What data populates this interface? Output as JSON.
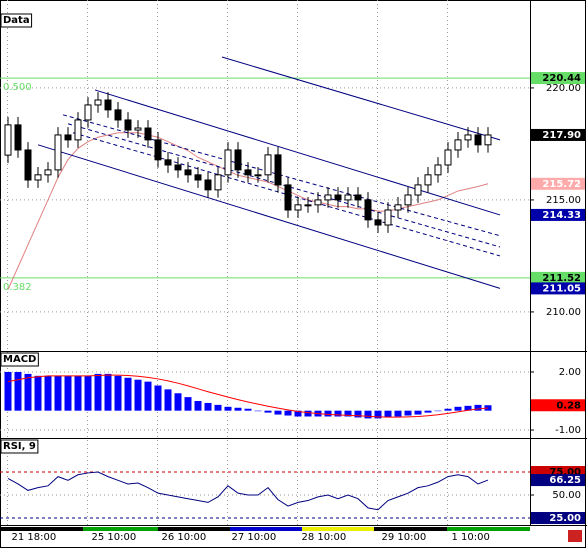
{
  "chart_data": [
    {
      "type": "candlestick",
      "title": "Data",
      "categories": [
        "21 18:00",
        null,
        null,
        null,
        null,
        null,
        null,
        null,
        "25 10:00",
        null,
        null,
        null,
        null,
        null,
        null,
        "26 10:00",
        null,
        null,
        null,
        null,
        null,
        null,
        "27 10:00",
        null,
        null,
        null,
        null,
        null,
        null,
        "28 10:00",
        null,
        null,
        null,
        null,
        null,
        null,
        null,
        "29 10:00",
        null,
        null,
        null,
        null,
        null,
        null,
        "1 10:00",
        null,
        null,
        null,
        null
      ],
      "open": [
        217.0,
        218.35,
        217.23,
        215.89,
        216.12,
        216.34,
        217.9,
        217.68,
        218.57,
        219.24,
        219.46,
        219.02,
        218.57,
        218.12,
        218.21,
        217.68,
        216.79,
        216.56,
        216.34,
        216.12,
        215.89,
        215.45,
        216.12,
        217.23,
        216.34,
        216.12,
        216.12,
        217.01,
        215.67,
        214.55,
        214.78,
        214.78,
        215.0,
        215.22,
        215.0,
        215.22,
        215.0,
        214.11,
        213.88,
        214.55,
        214.78,
        215.22,
        215.67,
        216.12,
        216.56,
        217.23,
        217.68,
        217.9,
        217.46
      ],
      "high": [
        218.7,
        218.7,
        217.58,
        216.47,
        216.69,
        218.25,
        218.25,
        218.92,
        219.59,
        219.81,
        219.81,
        219.37,
        218.92,
        218.56,
        218.56,
        218.03,
        217.14,
        216.91,
        216.69,
        216.47,
        216.24,
        216.47,
        217.58,
        217.58,
        216.69,
        216.47,
        217.36,
        217.36,
        216.02,
        215.13,
        215.13,
        215.35,
        215.57,
        215.57,
        215.57,
        215.57,
        215.35,
        214.46,
        214.9,
        215.13,
        215.57,
        216.02,
        216.47,
        216.91,
        217.58,
        218.03,
        218.25,
        218.25,
        218.25
      ],
      "low": [
        216.65,
        216.88,
        215.54,
        215.54,
        215.77,
        215.99,
        217.33,
        217.33,
        218.22,
        218.89,
        218.67,
        218.22,
        217.77,
        217.77,
        217.33,
        216.44,
        216.21,
        215.99,
        215.77,
        215.54,
        215.1,
        215.1,
        215.77,
        215.99,
        215.77,
        215.77,
        215.77,
        215.32,
        214.2,
        214.2,
        214.43,
        214.43,
        214.65,
        214.65,
        214.65,
        214.65,
        213.76,
        213.53,
        213.53,
        214.2,
        214.43,
        214.87,
        215.32,
        215.77,
        216.21,
        216.88,
        217.33,
        217.11,
        217.11
      ],
      "close": [
        218.35,
        217.23,
        215.89,
        216.12,
        216.34,
        217.9,
        217.68,
        218.57,
        219.24,
        219.46,
        219.02,
        218.57,
        218.12,
        218.21,
        217.68,
        216.79,
        216.56,
        216.34,
        216.12,
        215.89,
        215.45,
        216.12,
        217.23,
        216.34,
        216.12,
        216.12,
        217.01,
        215.67,
        214.55,
        214.78,
        214.78,
        215.0,
        215.22,
        215.0,
        215.22,
        215.0,
        214.11,
        213.88,
        214.55,
        214.78,
        215.22,
        215.67,
        216.12,
        216.56,
        217.23,
        217.68,
        217.9,
        217.46,
        217.9
      ],
      "up_color": "#ffffff",
      "down_color": "#000000",
      "moving_average": {
        "color": "#e08080",
        "values": [
          211.0,
          212.0,
          213.0,
          214.0,
          215.0,
          216.0,
          216.8,
          217.3,
          217.6,
          217.8,
          217.9,
          218.0,
          218.0,
          218.0,
          217.9,
          217.8,
          217.6,
          217.4,
          217.2,
          216.9,
          216.7,
          216.5,
          216.3,
          216.1,
          216.0,
          215.9,
          215.8,
          215.6,
          215.4,
          215.2,
          215.0,
          214.9,
          214.8,
          214.7,
          214.7,
          214.6,
          214.6,
          214.5,
          214.5,
          214.6,
          214.7,
          214.8,
          214.9,
          215.0,
          215.2,
          215.4,
          215.5,
          215.6,
          215.72
        ]
      },
      "trendlines": [
        {
          "x": [
            21.4,
            49.2
          ],
          "y": [
            221.38,
            217.68
          ],
          "color": "#000080",
          "dashed": false
        },
        {
          "x": [
            8.7,
            49.2
          ],
          "y": [
            219.91,
            214.33
          ],
          "color": "#000080",
          "dashed": false
        },
        {
          "x": [
            3.0,
            49.2
          ],
          "y": [
            217.46,
            211.05
          ],
          "color": "#000080",
          "dashed": false
        },
        {
          "x": [
            5.5,
            49.2
          ],
          "y": [
            218.8,
            213.4
          ],
          "color": "#000080",
          "dashed": true
        },
        {
          "x": [
            6.0,
            49.2
          ],
          "y": [
            218.4,
            212.9
          ],
          "color": "#000080",
          "dashed": true
        },
        {
          "x": [
            6.5,
            49.2
          ],
          "y": [
            218.0,
            212.5
          ],
          "color": "#000080",
          "dashed": true
        }
      ],
      "levels": [
        {
          "label": "0.500",
          "price": 220.44,
          "color": "#66dd66",
          "text_color": "#000000"
        },
        {
          "label": "0.382",
          "price": 211.52,
          "color": "#66dd66",
          "text_color": "#000000"
        }
      ],
      "price_tags": [
        {
          "price": {
            "value": 217.9,
            "label": "217.90"
          },
          "color": "#000000",
          "text_color": "#ffffff"
        },
        {
          "price": 215.72,
          "color": "#ffaaaa",
          "text_color": "#ffffff"
        },
        {
          "price": 214.33,
          "color": "#0000aa",
          "text_color": "#ffffff"
        },
        {
          "price": 211.05,
          "color": "#0000aa",
          "text_color": "#ffffff"
        }
      ],
      "ylim": [
        208.3,
        223.3
      ],
      "yticks": [
        {
          "value": 220,
          "label": "220.00"
        },
        {
          "value": 215,
          "label": "215.00"
        },
        {
          "value": 210,
          "label": "210.00"
        }
      ]
    },
    {
      "type": "macd",
      "title": "MACD",
      "histogram": {
        "color": "#0000ff",
        "values": [
          2.0,
          2.0,
          1.9,
          1.8,
          1.8,
          1.8,
          1.8,
          1.8,
          1.8,
          1.9,
          1.9,
          1.8,
          1.7,
          1.6,
          1.5,
          1.3,
          1.1,
          0.9,
          0.7,
          0.5,
          0.4,
          0.3,
          0.2,
          0.15,
          0.1,
          0.0,
          -0.1,
          -0.2,
          -0.25,
          -0.3,
          -0.3,
          -0.3,
          -0.3,
          -0.3,
          -0.3,
          -0.35,
          -0.4,
          -0.4,
          -0.35,
          -0.3,
          -0.25,
          -0.2,
          -0.1,
          0.0,
          0.1,
          0.2,
          0.25,
          0.3,
          0.28
        ]
      },
      "signal": {
        "color": "#ff0000",
        "values": [
          1.5,
          1.6,
          1.7,
          1.75,
          1.8,
          1.8,
          1.8,
          1.8,
          1.8,
          1.82,
          1.84,
          1.84,
          1.82,
          1.78,
          1.72,
          1.64,
          1.54,
          1.42,
          1.28,
          1.13,
          0.98,
          0.84,
          0.7,
          0.57,
          0.45,
          0.34,
          0.23,
          0.13,
          0.04,
          -0.04,
          -0.1,
          -0.15,
          -0.19,
          -0.22,
          -0.24,
          -0.26,
          -0.29,
          -0.32,
          -0.33,
          -0.33,
          -0.32,
          -0.3,
          -0.26,
          -0.21,
          -0.14,
          -0.06,
          0.02,
          0.09,
          0.14
        ]
      },
      "price_tags": [
        {
          "price": 0.28,
          "color": "#ff0000",
          "text_color": "#000000"
        }
      ],
      "ylim": [
        -1.36,
        2.98
      ],
      "yticks": [
        {
          "value": 2,
          "label": "2.00"
        },
        {
          "value": -1,
          "label": "-1.00"
        }
      ]
    },
    {
      "type": "line",
      "title": "RSI, 9",
      "color": "#000080",
      "values": [
        68,
        62,
        55,
        58,
        60,
        70,
        66,
        72,
        74,
        75,
        70,
        66,
        62,
        63,
        58,
        52,
        50,
        48,
        46,
        44,
        42,
        48,
        60,
        52,
        50,
        50,
        58,
        45,
        38,
        42,
        44,
        48,
        50,
        46,
        50,
        46,
        36,
        34,
        44,
        48,
        52,
        58,
        60,
        64,
        70,
        72,
        70,
        62,
        66.25
      ],
      "levels": [
        {
          "price": {
            "value": 75,
            "label": "75.00"
          },
          "color": "#cc0000",
          "text_color": "#000000"
        },
        {
          "price": {
            "value": 25,
            "label": "25.00"
          },
          "color": "#000080",
          "text_color": "#ffffff"
        }
      ],
      "price_tags": [
        {
          "price": 66.25,
          "color": "#000080",
          "text_color": "#ffffff"
        }
      ],
      "ylim": [
        18.5,
        109.8
      ],
      "yticks": [
        {
          "value": 50,
          "label": "50.00"
        }
      ]
    }
  ]
}
